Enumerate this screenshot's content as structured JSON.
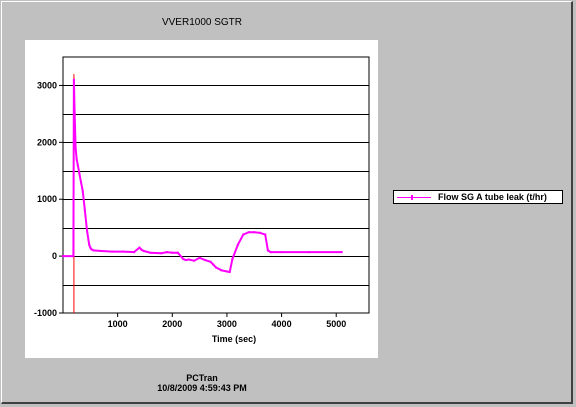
{
  "window": {
    "title": "VVER1000 SGTR",
    "footer_line1": "PCTran",
    "footer_line2": "10/8/2009 4:59:43 PM"
  },
  "chart_data": {
    "type": "line",
    "title": "VVER1000 SGTR",
    "xlabel": "Time (sec)",
    "ylabel": "",
    "xlim": [
      0,
      5600
    ],
    "ylim": [
      -1000,
      3500
    ],
    "xticks": [
      1000,
      2000,
      3000,
      4000,
      5000
    ],
    "yticks": [
      3000,
      2000,
      1000,
      0,
      -1000
    ],
    "grid": "horizontal",
    "legend_position": "right",
    "colors": {
      "series": "#ff00ff",
      "marker": "#ff0000"
    },
    "series": [
      {
        "name": "Flow SG A tube leak (t/hr)",
        "x": [
          0,
          190,
          200,
          210,
          230,
          250,
          270,
          300,
          330,
          360,
          400,
          440,
          480,
          500,
          520,
          560,
          700,
          900,
          1100,
          1300,
          1400,
          1440,
          1480,
          1600,
          1800,
          1900,
          2000,
          2100,
          2200,
          2250,
          2300,
          2400,
          2500,
          2600,
          2700,
          2750,
          2800,
          2900,
          3000,
          3050,
          3100,
          3200,
          3300,
          3400,
          3500,
          3600,
          3700,
          3750,
          3800,
          4000,
          4500,
          5100
        ],
        "values": [
          0,
          0,
          3100,
          2600,
          1900,
          1700,
          1600,
          1450,
          1300,
          1150,
          800,
          450,
          200,
          150,
          120,
          100,
          90,
          80,
          80,
          70,
          150,
          110,
          90,
          60,
          50,
          70,
          60,
          60,
          -50,
          -70,
          -60,
          -80,
          -30,
          -70,
          -100,
          -150,
          -200,
          -250,
          -270,
          -280,
          -50,
          200,
          380,
          420,
          420,
          410,
          380,
          100,
          70,
          70,
          70,
          70
        ]
      }
    ],
    "vertical_marker_x": 200
  }
}
